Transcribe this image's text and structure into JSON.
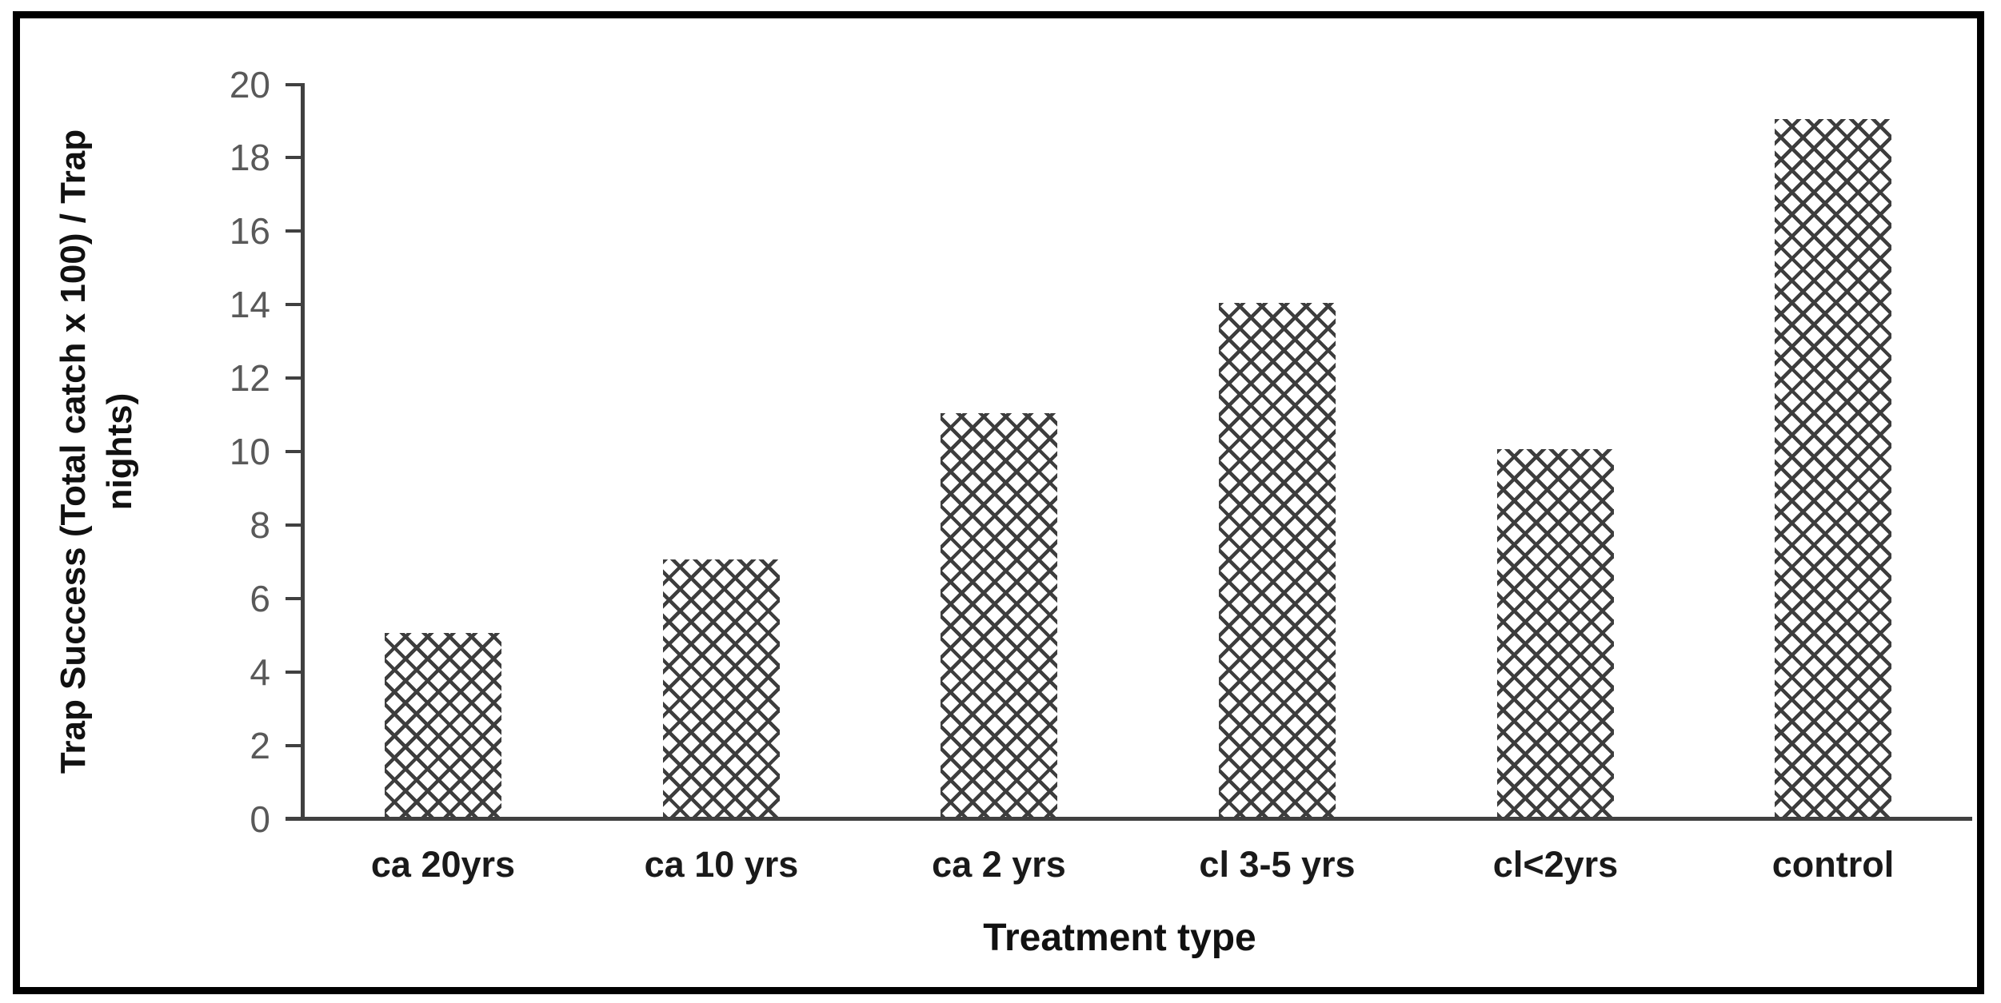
{
  "figure": {
    "background_color": "#ffffff",
    "frame_border_color": "#000000",
    "axis_color": "#404040",
    "tick_label_color": "#595959",
    "title_color": "#111111",
    "category_label_color": "#1a1a1a",
    "bar_pattern_color": "#3d3d3d",
    "bar_fill_color": "#ffffff"
  },
  "chart_data": {
    "type": "bar",
    "title": "",
    "categories": [
      "ca 20yrs",
      "ca 10 yrs",
      "ca 2 yrs",
      "cl 3-5 yrs",
      "cl<2yrs",
      "control"
    ],
    "values": [
      5,
      7,
      11,
      14,
      10,
      19
    ],
    "xlabel": "Treatment type",
    "ylabel": "Trap Success (Total catch x 100) / Trap nights)",
    "ylabel_line1": "Trap Success (Total catch x 100) / Trap",
    "ylabel_line2": "nights)",
    "ylim": [
      0,
      20
    ],
    "ytick_step": 2,
    "yticks": [
      0,
      2,
      4,
      6,
      8,
      10,
      12,
      14,
      16,
      18,
      20
    ],
    "grid": false,
    "legend": "none",
    "bar_style": "diagonal-crosshatch-pattern"
  }
}
